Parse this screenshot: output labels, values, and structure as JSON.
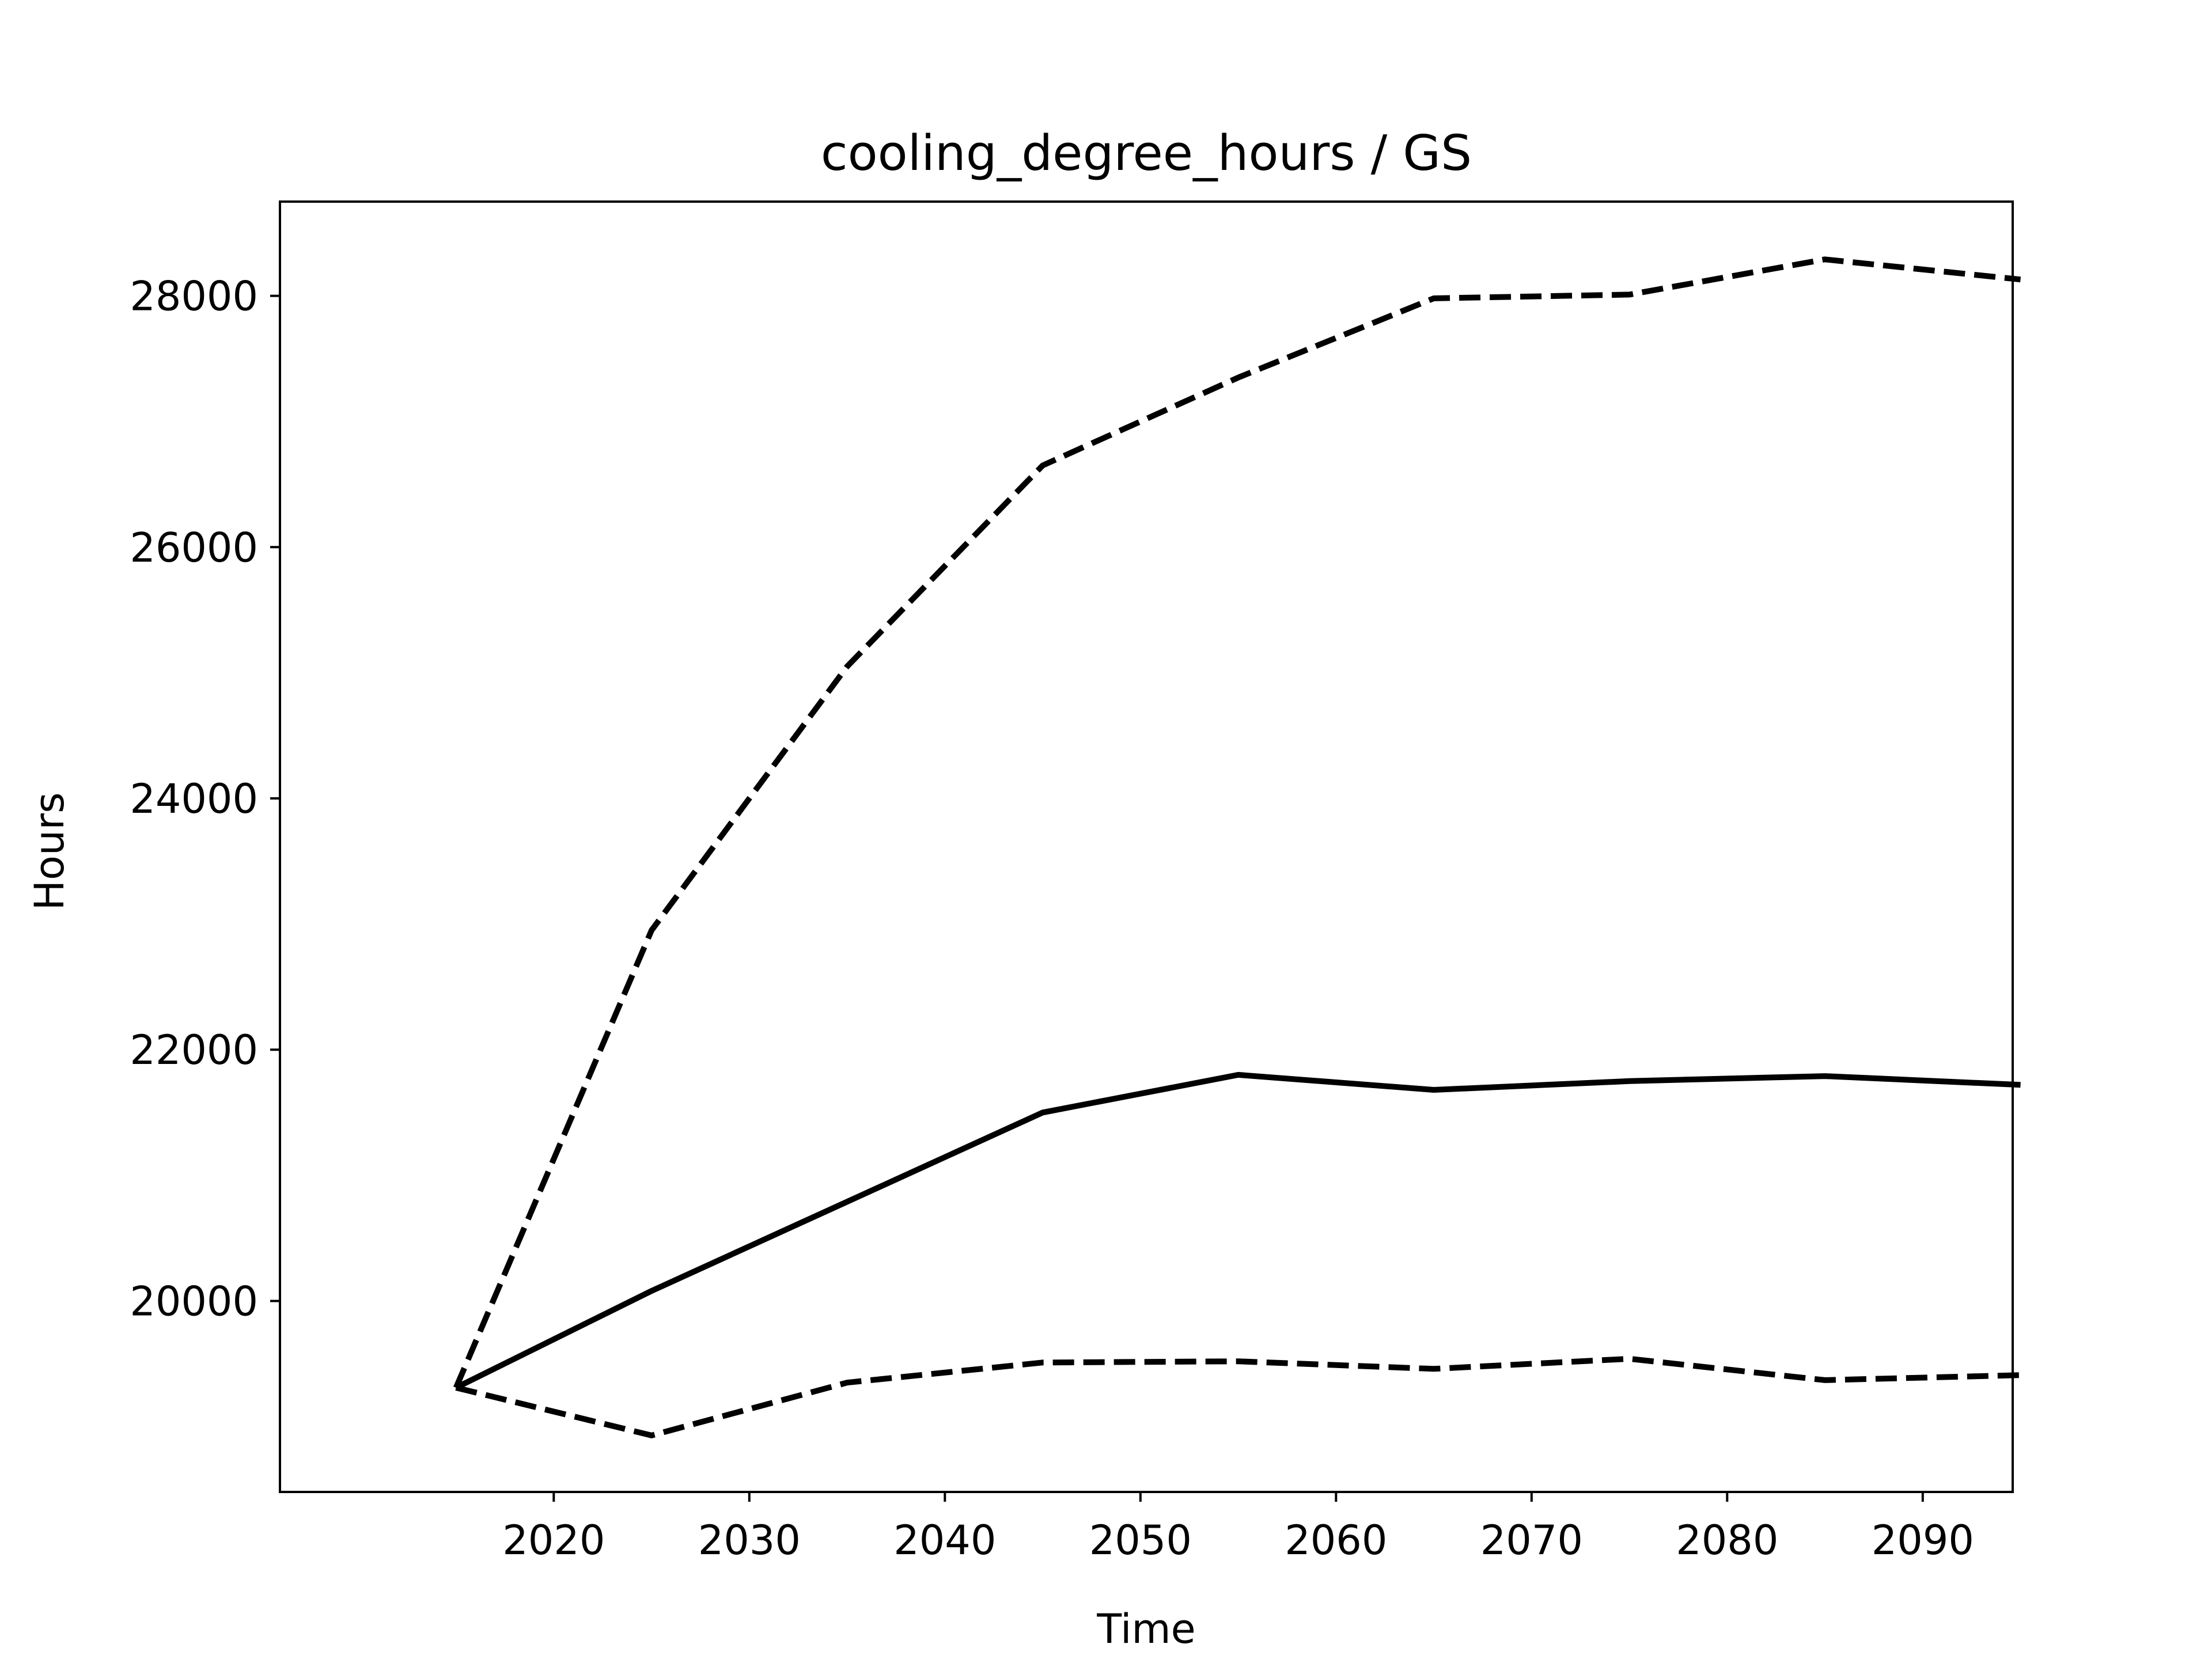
{
  "chart_data": {
    "type": "line",
    "title": "cooling_degree_hours / GS",
    "xlabel": "Time",
    "ylabel": "Hours",
    "x": [
      2015,
      2025,
      2035,
      2045,
      2055,
      2065,
      2075,
      2085,
      2095
    ],
    "xlim": [
      2006,
      2094.6
    ],
    "ylim": [
      18480,
      28750
    ],
    "xticks": [
      2020,
      2030,
      2040,
      2050,
      2060,
      2070,
      2080,
      2090
    ],
    "yticks": [
      20000,
      22000,
      24000,
      26000,
      28000
    ],
    "grid": false,
    "series": [
      {
        "style": "dashed",
        "color": "#000000",
        "values": [
          19310,
          22950,
          25050,
          26650,
          27350,
          27980,
          28010,
          28290,
          28130
        ]
      },
      {
        "style": "solid",
        "color": "#000000",
        "values": [
          19310,
          20080,
          20790,
          21500,
          21800,
          21680,
          21750,
          21790,
          21720
        ]
      },
      {
        "style": "dashed",
        "color": "#000000",
        "values": [
          19310,
          18930,
          19350,
          19510,
          19520,
          19460,
          19540,
          19370,
          19410
        ]
      }
    ]
  }
}
